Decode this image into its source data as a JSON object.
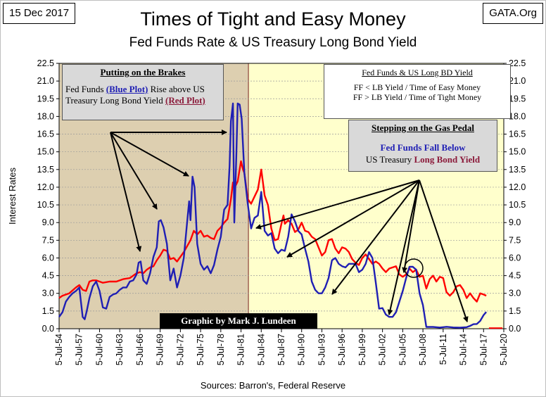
{
  "date_label": "15 Dec 2017",
  "source_label": "GATA.Org",
  "sources_note": "Sources: Barron's, Federal Reserve",
  "chart_data": {
    "type": "line",
    "title": "Times of Tight and Easy Money",
    "subtitle": "Fed Funds Rate & US Treasury Long Bond Yield",
    "xlabel": "",
    "ylabel": "Interest Rates",
    "ylim": [
      0,
      22.5
    ],
    "xlim": [
      1954.5,
      2020.5
    ],
    "y_ticks": [
      "0.0",
      "1.5",
      "3.0",
      "4.5",
      "6.0",
      "7.5",
      "9.0",
      "10.5",
      "12.0",
      "13.5",
      "15.0",
      "16.5",
      "18.0",
      "19.5",
      "21.0",
      "22.5"
    ],
    "x_ticks": [
      "5-Jul-54",
      "5-Jul-57",
      "5-Jul-60",
      "5-Jul-63",
      "5-Jul-66",
      "5-Jul-69",
      "5-Jul-72",
      "5-Jul-75",
      "5-Jul-78",
      "5-Jul-81",
      "5-Jul-84",
      "5-Jul-87",
      "5-Jul-90",
      "5-Jul-93",
      "5-Jul-96",
      "5-Jul-99",
      "5-Jul-02",
      "5-Jul-05",
      "5-Jul-08",
      "5-Jul-11",
      "5-Jul-14",
      "5-Jul-17",
      "5-Jul-20"
    ],
    "shaded_regions": [
      {
        "label": "Tight money",
        "from": 1954.5,
        "to": 1982.6,
        "color": "#ddcfb0"
      },
      {
        "label": "Easy money",
        "from": 1982.6,
        "to": 2020.5,
        "color": "#ffffcc"
      }
    ],
    "series": [
      {
        "name": "Fed Funds",
        "color": "#1f1fb4",
        "x": [
          1954.5,
          1955.0,
          1955.5,
          1956.0,
          1956.5,
          1957.0,
          1957.5,
          1958.0,
          1958.3,
          1958.6,
          1959.0,
          1959.5,
          1960.0,
          1960.5,
          1961.0,
          1961.5,
          1962.0,
          1962.5,
          1963.0,
          1963.5,
          1964.0,
          1964.5,
          1965.0,
          1965.5,
          1966.0,
          1966.3,
          1966.6,
          1967.0,
          1967.5,
          1968.0,
          1968.5,
          1969.0,
          1969.3,
          1969.6,
          1970.0,
          1970.5,
          1971.0,
          1971.5,
          1972.0,
          1972.5,
          1973.0,
          1973.5,
          1973.8,
          1974.0,
          1974.3,
          1974.6,
          1975.0,
          1975.5,
          1976.0,
          1976.5,
          1977.0,
          1977.5,
          1978.0,
          1978.5,
          1979.0,
          1979.5,
          1979.8,
          1980.0,
          1980.3,
          1980.5,
          1980.8,
          1981.0,
          1981.3,
          1981.6,
          1982.0,
          1982.5,
          1983.0,
          1983.5,
          1984.0,
          1984.5,
          1985.0,
          1985.5,
          1986.0,
          1986.5,
          1987.0,
          1987.5,
          1988.0,
          1988.5,
          1989.0,
          1989.5,
          1990.0,
          1990.5,
          1991.0,
          1991.5,
          1992.0,
          1992.5,
          1993.0,
          1993.5,
          1994.0,
          1994.5,
          1995.0,
          1995.5,
          1996.0,
          1996.5,
          1997.0,
          1997.5,
          1998.0,
          1998.5,
          1999.0,
          1999.5,
          2000.0,
          2000.5,
          2001.0,
          2001.5,
          2002.0,
          2002.5,
          2003.0,
          2003.5,
          2004.0,
          2004.5,
          2005.0,
          2005.5,
          2006.0,
          2006.5,
          2007.0,
          2007.5,
          2008.0,
          2008.5,
          2009.0,
          2009.5,
          2010.0,
          2011.0,
          2012.0,
          2013.0,
          2014.0,
          2015.0,
          2015.5,
          2016.0,
          2016.5,
          2017.0,
          2017.5,
          2017.9
        ],
        "values": [
          1.0,
          1.4,
          2.3,
          2.7,
          3.0,
          3.2,
          3.5,
          1.0,
          0.8,
          1.5,
          2.6,
          3.6,
          4.0,
          3.2,
          1.8,
          1.7,
          2.7,
          2.9,
          3.0,
          3.3,
          3.5,
          3.5,
          4.0,
          4.1,
          4.6,
          5.6,
          5.7,
          4.1,
          3.8,
          4.7,
          6.1,
          6.9,
          9.1,
          9.2,
          8.6,
          7.2,
          4.1,
          5.1,
          3.5,
          4.5,
          6.0,
          9.0,
          10.8,
          9.2,
          12.9,
          12.0,
          7.2,
          5.5,
          5.0,
          5.3,
          4.7,
          5.4,
          6.7,
          7.8,
          10.1,
          10.5,
          13.8,
          17.6,
          19.1,
          9.0,
          14.5,
          19.1,
          19.0,
          17.8,
          13.2,
          10.6,
          8.5,
          9.4,
          9.6,
          11.6,
          8.3,
          7.9,
          8.1,
          6.8,
          6.4,
          6.7,
          6.6,
          7.8,
          9.7,
          9.1,
          8.3,
          8.0,
          6.8,
          5.7,
          4.0,
          3.3,
          3.0,
          3.0,
          3.5,
          4.3,
          5.8,
          6.0,
          5.5,
          5.3,
          5.2,
          5.5,
          5.5,
          5.5,
          4.8,
          5.0,
          5.5,
          6.5,
          6.0,
          3.9,
          1.7,
          1.75,
          1.2,
          1.0,
          1.0,
          1.4,
          2.3,
          3.2,
          4.3,
          5.25,
          5.25,
          5.0,
          3.0,
          2.0,
          0.15,
          0.15,
          0.15,
          0.1,
          0.16,
          0.11,
          0.09,
          0.13,
          0.24,
          0.38,
          0.4,
          0.66,
          1.16,
          1.42
        ]
      },
      {
        "name": "US Long Bond Yield",
        "color": "#ff0000",
        "x": [
          1954.5,
          1955.0,
          1956.0,
          1957.0,
          1957.5,
          1958.0,
          1958.5,
          1959.0,
          1959.5,
          1960.0,
          1960.5,
          1961.0,
          1962.0,
          1963.0,
          1964.0,
          1965.0,
          1966.0,
          1966.5,
          1967.0,
          1967.5,
          1968.0,
          1968.5,
          1969.0,
          1969.5,
          1970.0,
          1970.5,
          1971.0,
          1971.5,
          1972.0,
          1973.0,
          1974.0,
          1974.5,
          1975.0,
          1975.5,
          1976.0,
          1976.5,
          1977.0,
          1977.5,
          1978.0,
          1978.5,
          1979.0,
          1979.5,
          1980.0,
          1980.3,
          1980.6,
          1981.0,
          1981.5,
          1981.8,
          1982.0,
          1982.5,
          1983.0,
          1983.5,
          1984.0,
          1984.5,
          1985.0,
          1985.5,
          1986.0,
          1986.5,
          1987.0,
          1987.5,
          1987.8,
          1988.0,
          1988.5,
          1989.0,
          1989.5,
          1990.0,
          1990.5,
          1991.0,
          1991.5,
          1992.0,
          1992.5,
          1993.0,
          1993.5,
          1994.0,
          1994.5,
          1995.0,
          1995.5,
          1996.0,
          1996.5,
          1997.0,
          1997.5,
          1998.0,
          1998.5,
          1999.0,
          1999.5,
          2000.0,
          2000.5,
          2001.0,
          2001.5,
          2002.0,
          2002.5,
          2003.0,
          2003.5,
          2004.0,
          2004.5,
          2005.0,
          2005.5,
          2006.0,
          2006.5,
          2007.0,
          2007.5,
          2008.0,
          2008.5,
          2009.0,
          2009.5,
          2010.0,
          2010.5,
          2011.0,
          2011.5,
          2012.0,
          2012.5,
          2013.0,
          2013.5,
          2014.0,
          2014.5,
          2015.0,
          2015.5,
          2016.0,
          2016.5,
          2017.0,
          2017.5,
          2017.9
        ],
        "values": [
          2.6,
          2.8,
          3.0,
          3.5,
          3.7,
          3.3,
          3.2,
          4.0,
          4.1,
          4.1,
          4.0,
          3.9,
          4.0,
          4.0,
          4.2,
          4.3,
          4.7,
          4.8,
          4.7,
          5.0,
          5.2,
          5.3,
          5.8,
          6.2,
          6.7,
          6.6,
          5.9,
          6.0,
          5.7,
          6.5,
          7.5,
          8.3,
          8.0,
          8.3,
          7.8,
          7.9,
          7.7,
          7.6,
          8.3,
          8.6,
          9.0,
          9.3,
          11.0,
          12.4,
          12.0,
          12.5,
          14.2,
          13.5,
          13.2,
          11.0,
          10.6,
          11.2,
          11.8,
          13.5,
          11.3,
          10.5,
          8.5,
          7.5,
          7.6,
          8.9,
          9.6,
          8.9,
          9.2,
          8.9,
          8.2,
          8.4,
          9.0,
          8.3,
          8.2,
          7.8,
          7.6,
          6.9,
          6.2,
          6.5,
          7.5,
          7.6,
          6.8,
          6.4,
          6.9,
          6.8,
          6.5,
          5.9,
          5.6,
          5.4,
          6.0,
          6.3,
          5.9,
          5.5,
          5.7,
          5.5,
          5.1,
          4.8,
          5.1,
          5.2,
          5.3,
          4.6,
          4.4,
          4.6,
          5.1,
          4.8,
          5.0,
          4.4,
          4.5,
          3.4,
          4.2,
          4.5,
          4.0,
          4.4,
          4.3,
          3.1,
          2.8,
          3.1,
          3.6,
          3.7,
          3.3,
          2.6,
          3.0,
          2.6,
          2.3,
          3.0,
          2.9,
          2.8
        ]
      }
    ],
    "annotations": {
      "brakes_title": "Putting on the Brakes",
      "brakes_text_1": "Fed Funds",
      "brakes_blue": "(Blue Plot)",
      "brakes_text_2": "Rise above US Treasury Long Bond Yield",
      "brakes_red": "(Red Plot)",
      "legend_title": "Fed Funds & US Long BD Yield",
      "legend_line_1": "FF < LB Yield / Time of Easy Money",
      "legend_line_2": "FF > LB Yield / Time of Tight Money",
      "gas_title": "Stepping on the Gas Pedal",
      "gas_line_1": "Fed Funds Fall Below",
      "gas_line_2_a": "US Treasury",
      "gas_line_2_b": "Long Bond Yield",
      "credit": "Graphic by Mark J. Lundeen"
    }
  }
}
